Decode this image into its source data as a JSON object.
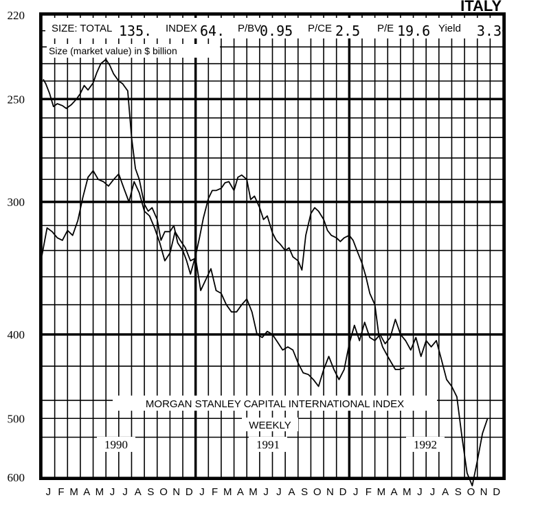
{
  "country": "ITALY",
  "stats": {
    "size_label": "SIZE: TOTAL",
    "size_value": "135.",
    "index_label": "INDEX",
    "index_value": "64.",
    "pbv_label": "P/BV",
    "pbv_value": "0.95",
    "pce_label": "P/CE",
    "pce_value": "2.5",
    "pe_label": "P/E",
    "pe_value": "19.6",
    "yield_label": "Yield",
    "yield_value": "3.3"
  },
  "size_caption": "Size (market value) in $ billion",
  "index_title": "MORGAN STANLEY CAPITAL INTERNATIONAL INDEX",
  "frequency": "WEEKLY",
  "years": [
    "1990",
    "1991",
    "1992"
  ],
  "months": [
    "J",
    "F",
    "M",
    "A",
    "M",
    "J",
    "J",
    "A",
    "S",
    "O",
    "N",
    "D",
    "J",
    "F",
    "M",
    "A",
    "M",
    "J",
    "J",
    "A",
    "S",
    "O",
    "N",
    "D",
    "J",
    "F",
    "M",
    "A",
    "M",
    "J",
    "J",
    "A",
    "S",
    "O",
    "N",
    "D"
  ],
  "y_ticks": [
    "600",
    "500",
    "400",
    "300",
    "250",
    "220"
  ],
  "colors": {
    "ink": "#000000",
    "paper": "#ffffff"
  },
  "chart_data": {
    "type": "line",
    "scale": "log",
    "ylim": [
      220,
      600
    ],
    "y_ticks": [
      220,
      250,
      300,
      400,
      500,
      600
    ],
    "x_unit": "month index (0 = Jan 1990)",
    "xlim": [
      0,
      36
    ],
    "grid": true,
    "series": [
      {
        "points": [
          [
            0.1,
            522
          ],
          [
            0.3,
            517
          ],
          [
            0.6,
            506
          ],
          [
            0.9,
            492
          ],
          [
            1.2,
            495
          ],
          [
            1.6,
            493
          ],
          [
            1.9,
            490
          ],
          [
            2.3,
            494
          ],
          [
            2.7,
            500
          ],
          [
            3.0,
            506
          ],
          [
            3.3,
            515
          ],
          [
            3.6,
            510
          ],
          [
            4.0,
            518
          ],
          [
            4.3,
            530
          ],
          [
            4.6,
            540
          ],
          [
            5.0,
            545
          ],
          [
            5.3,
            538
          ],
          [
            5.6,
            528
          ],
          [
            6.0,
            520
          ],
          [
            6.3,
            517
          ],
          [
            6.7,
            509
          ],
          [
            7.0,
            460
          ],
          [
            7.3,
            430
          ],
          [
            7.6,
            420
          ],
          [
            8.0,
            398
          ],
          [
            8.3,
            392
          ],
          [
            8.6,
            395
          ],
          [
            9.0,
            385
          ],
          [
            9.3,
            368
          ],
          [
            9.6,
            375
          ],
          [
            10.0,
            375
          ],
          [
            10.3,
            380
          ],
          [
            10.6,
            366
          ],
          [
            11.0,
            360
          ],
          [
            11.3,
            352
          ],
          [
            11.6,
            342
          ],
          [
            12.0,
            356
          ],
          [
            12.3,
            370
          ],
          [
            12.6,
            386
          ],
          [
            13.0,
            403
          ],
          [
            13.3,
            410
          ],
          [
            13.6,
            410
          ],
          [
            14.0,
            412
          ],
          [
            14.3,
            417
          ],
          [
            14.6,
            418
          ],
          [
            15.0,
            410
          ],
          [
            15.3,
            422
          ],
          [
            15.6,
            424
          ],
          [
            16.0,
            420
          ],
          [
            16.3,
            402
          ],
          [
            16.6,
            405
          ],
          [
            17.0,
            395
          ],
          [
            17.3,
            385
          ],
          [
            17.6,
            388
          ],
          [
            18.0,
            374
          ],
          [
            18.3,
            368
          ],
          [
            18.6,
            365
          ],
          [
            19.0,
            360
          ],
          [
            19.3,
            362
          ],
          [
            19.6,
            355
          ],
          [
            20.0,
            352
          ],
          [
            20.3,
            345
          ],
          [
            20.6,
            372
          ],
          [
            21.0,
            390
          ],
          [
            21.3,
            395
          ],
          [
            21.6,
            392
          ],
          [
            22.0,
            385
          ],
          [
            22.3,
            376
          ],
          [
            22.6,
            372
          ],
          [
            23.0,
            370
          ],
          [
            23.3,
            367
          ],
          [
            23.6,
            370
          ],
          [
            24.0,
            372
          ],
          [
            24.3,
            368
          ],
          [
            24.6,
            360
          ],
          [
            25.0,
            350
          ],
          [
            25.3,
            340
          ],
          [
            25.6,
            328
          ],
          [
            26.0,
            320
          ],
          [
            26.3,
            300
          ],
          [
            26.6,
            292
          ],
          [
            27.0,
            286
          ],
          [
            27.3,
            282
          ],
          [
            27.6,
            278
          ],
          [
            27.9,
            278
          ],
          [
            28.3,
            279
          ]
        ]
      },
      {
        "points": [
          [
            0.0,
            356
          ],
          [
            0.4,
            378
          ],
          [
            0.8,
            375
          ],
          [
            1.2,
            370
          ],
          [
            1.6,
            368
          ],
          [
            2.0,
            376
          ],
          [
            2.4,
            372
          ],
          [
            2.8,
            384
          ],
          [
            3.2,
            404
          ],
          [
            3.6,
            422
          ],
          [
            4.0,
            428
          ],
          [
            4.4,
            420
          ],
          [
            4.8,
            418
          ],
          [
            5.2,
            414
          ],
          [
            5.6,
            420
          ],
          [
            6.0,
            425
          ],
          [
            6.4,
            412
          ],
          [
            6.8,
            400
          ],
          [
            7.2,
            418
          ],
          [
            7.6,
            408
          ],
          [
            8.0,
            392
          ],
          [
            8.4,
            388
          ],
          [
            8.8,
            378
          ],
          [
            9.2,
            366
          ],
          [
            9.6,
            352
          ],
          [
            10.0,
            358
          ],
          [
            10.4,
            375
          ],
          [
            10.8,
            368
          ],
          [
            11.2,
            362
          ],
          [
            11.6,
            352
          ],
          [
            12.0,
            354
          ],
          [
            12.4,
            330
          ],
          [
            12.8,
            338
          ],
          [
            13.2,
            346
          ],
          [
            13.6,
            330
          ],
          [
            14.0,
            328
          ],
          [
            14.4,
            320
          ],
          [
            14.8,
            315
          ],
          [
            15.2,
            315
          ],
          [
            15.6,
            320
          ],
          [
            16.0,
            324
          ],
          [
            16.4,
            315
          ],
          [
            16.8,
            300
          ],
          [
            17.2,
            298
          ],
          [
            17.6,
            302
          ],
          [
            18.0,
            300
          ],
          [
            18.4,
            295
          ],
          [
            18.8,
            290
          ],
          [
            19.2,
            292
          ],
          [
            19.6,
            290
          ],
          [
            20.0,
            282
          ],
          [
            20.4,
            276
          ],
          [
            20.8,
            275
          ],
          [
            21.2,
            272
          ],
          [
            21.6,
            268
          ],
          [
            22.0,
            278
          ],
          [
            22.4,
            286
          ],
          [
            22.8,
            278
          ],
          [
            23.2,
            272
          ],
          [
            23.6,
            278
          ],
          [
            24.0,
            294
          ],
          [
            24.4,
            306
          ],
          [
            24.8,
            296
          ],
          [
            25.2,
            308
          ],
          [
            25.6,
            298
          ],
          [
            26.0,
            296
          ],
          [
            26.4,
            300
          ],
          [
            26.8,
            294
          ],
          [
            27.2,
            298
          ],
          [
            27.6,
            310
          ],
          [
            28.0,
            300
          ],
          [
            28.4,
            296
          ],
          [
            28.8,
            290
          ],
          [
            29.2,
            298
          ],
          [
            29.6,
            286
          ],
          [
            30.0,
            296
          ],
          [
            30.4,
            292
          ],
          [
            30.8,
            296
          ],
          [
            31.2,
            284
          ],
          [
            31.6,
            272
          ],
          [
            32.0,
            268
          ],
          [
            32.4,
            262
          ],
          [
            32.8,
            240
          ],
          [
            33.2,
            222
          ],
          [
            33.6,
            216
          ],
          [
            34.0,
            228
          ],
          [
            34.4,
            242
          ],
          [
            34.8,
            250
          ]
        ]
      }
    ]
  }
}
